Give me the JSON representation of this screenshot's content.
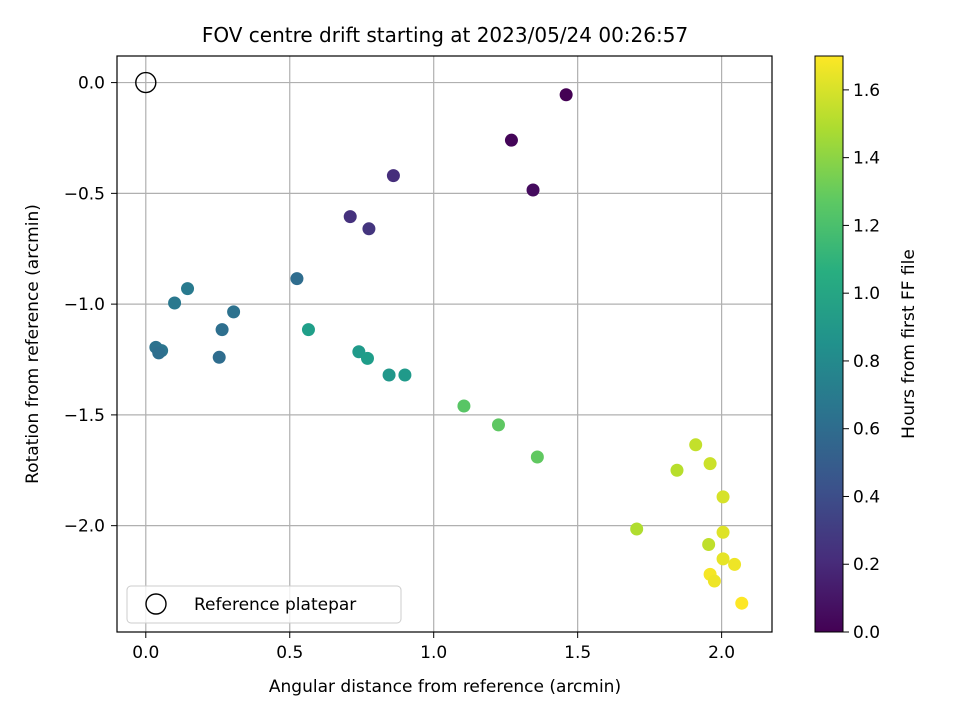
{
  "chart_data": {
    "type": "scatter",
    "title": "FOV centre drift starting at 2023/05/24 00:26:57",
    "xlabel": "Angular distance from reference (arcmin)",
    "ylabel": "Rotation from reference (arcmin)",
    "xlim": [
      -0.1,
      2.175
    ],
    "ylim": [
      -2.48,
      0.12
    ],
    "xticks": [
      0.0,
      0.5,
      1.0,
      1.5,
      2.0
    ],
    "xtick_labels": [
      "0.0",
      "0.5",
      "1.0",
      "1.5",
      "2.0"
    ],
    "yticks": [
      0.0,
      -0.5,
      -1.0,
      -1.5,
      -2.0
    ],
    "ytick_labels": [
      "0.0",
      "−0.5",
      "−1.0",
      "−1.5",
      "−2.0"
    ],
    "grid": true,
    "legend": {
      "label": "Reference platepar",
      "placement": "lower-left"
    },
    "reference": {
      "x": 0.0,
      "y": 0.0
    },
    "colorbar": {
      "label": "Hours from first FF file",
      "range": [
        0.0,
        1.7
      ],
      "ticks": [
        0.0,
        0.2,
        0.4,
        0.6,
        0.8,
        1.0,
        1.2,
        1.4,
        1.6
      ],
      "tick_labels": [
        "0.0",
        "0.2",
        "0.4",
        "0.6",
        "0.8",
        "1.0",
        "1.2",
        "1.4",
        "1.6"
      ],
      "colormap": "viridis"
    },
    "points": [
      {
        "x": 1.46,
        "y": -0.055,
        "c": 0.0
      },
      {
        "x": 1.27,
        "y": -0.26,
        "c": 0.02
      },
      {
        "x": 1.345,
        "y": -0.485,
        "c": 0.05
      },
      {
        "x": 0.86,
        "y": -0.42,
        "c": 0.22
      },
      {
        "x": 0.71,
        "y": -0.605,
        "c": 0.24
      },
      {
        "x": 0.775,
        "y": -0.66,
        "c": 0.26
      },
      {
        "x": 0.525,
        "y": -0.885,
        "c": 0.6
      },
      {
        "x": 0.145,
        "y": -0.93,
        "c": 0.7
      },
      {
        "x": 0.1,
        "y": -0.995,
        "c": 0.68
      },
      {
        "x": 0.305,
        "y": -1.035,
        "c": 0.64
      },
      {
        "x": 0.265,
        "y": -1.115,
        "c": 0.62
      },
      {
        "x": 0.035,
        "y": -1.195,
        "c": 0.64
      },
      {
        "x": 0.055,
        "y": -1.21,
        "c": 0.66
      },
      {
        "x": 0.045,
        "y": -1.22,
        "c": 0.62
      },
      {
        "x": 0.255,
        "y": -1.24,
        "c": 0.6
      },
      {
        "x": 0.565,
        "y": -1.115,
        "c": 0.95
      },
      {
        "x": 0.74,
        "y": -1.215,
        "c": 0.92
      },
      {
        "x": 0.77,
        "y": -1.245,
        "c": 0.94
      },
      {
        "x": 0.845,
        "y": -1.32,
        "c": 0.9
      },
      {
        "x": 0.9,
        "y": -1.32,
        "c": 0.92
      },
      {
        "x": 1.105,
        "y": -1.46,
        "c": 1.25
      },
      {
        "x": 1.225,
        "y": -1.545,
        "c": 1.27
      },
      {
        "x": 1.36,
        "y": -1.69,
        "c": 1.28
      },
      {
        "x": 1.91,
        "y": -1.635,
        "c": 1.55
      },
      {
        "x": 1.845,
        "y": -1.75,
        "c": 1.52
      },
      {
        "x": 1.96,
        "y": -1.72,
        "c": 1.57
      },
      {
        "x": 2.005,
        "y": -1.87,
        "c": 1.6
      },
      {
        "x": 1.705,
        "y": -2.015,
        "c": 1.5
      },
      {
        "x": 2.005,
        "y": -2.03,
        "c": 1.62
      },
      {
        "x": 1.955,
        "y": -2.085,
        "c": 1.54
      },
      {
        "x": 2.005,
        "y": -2.15,
        "c": 1.64
      },
      {
        "x": 2.045,
        "y": -2.175,
        "c": 1.66
      },
      {
        "x": 1.96,
        "y": -2.22,
        "c": 1.68
      },
      {
        "x": 1.975,
        "y": -2.25,
        "c": 1.66
      },
      {
        "x": 2.07,
        "y": -2.35,
        "c": 1.7
      }
    ]
  }
}
